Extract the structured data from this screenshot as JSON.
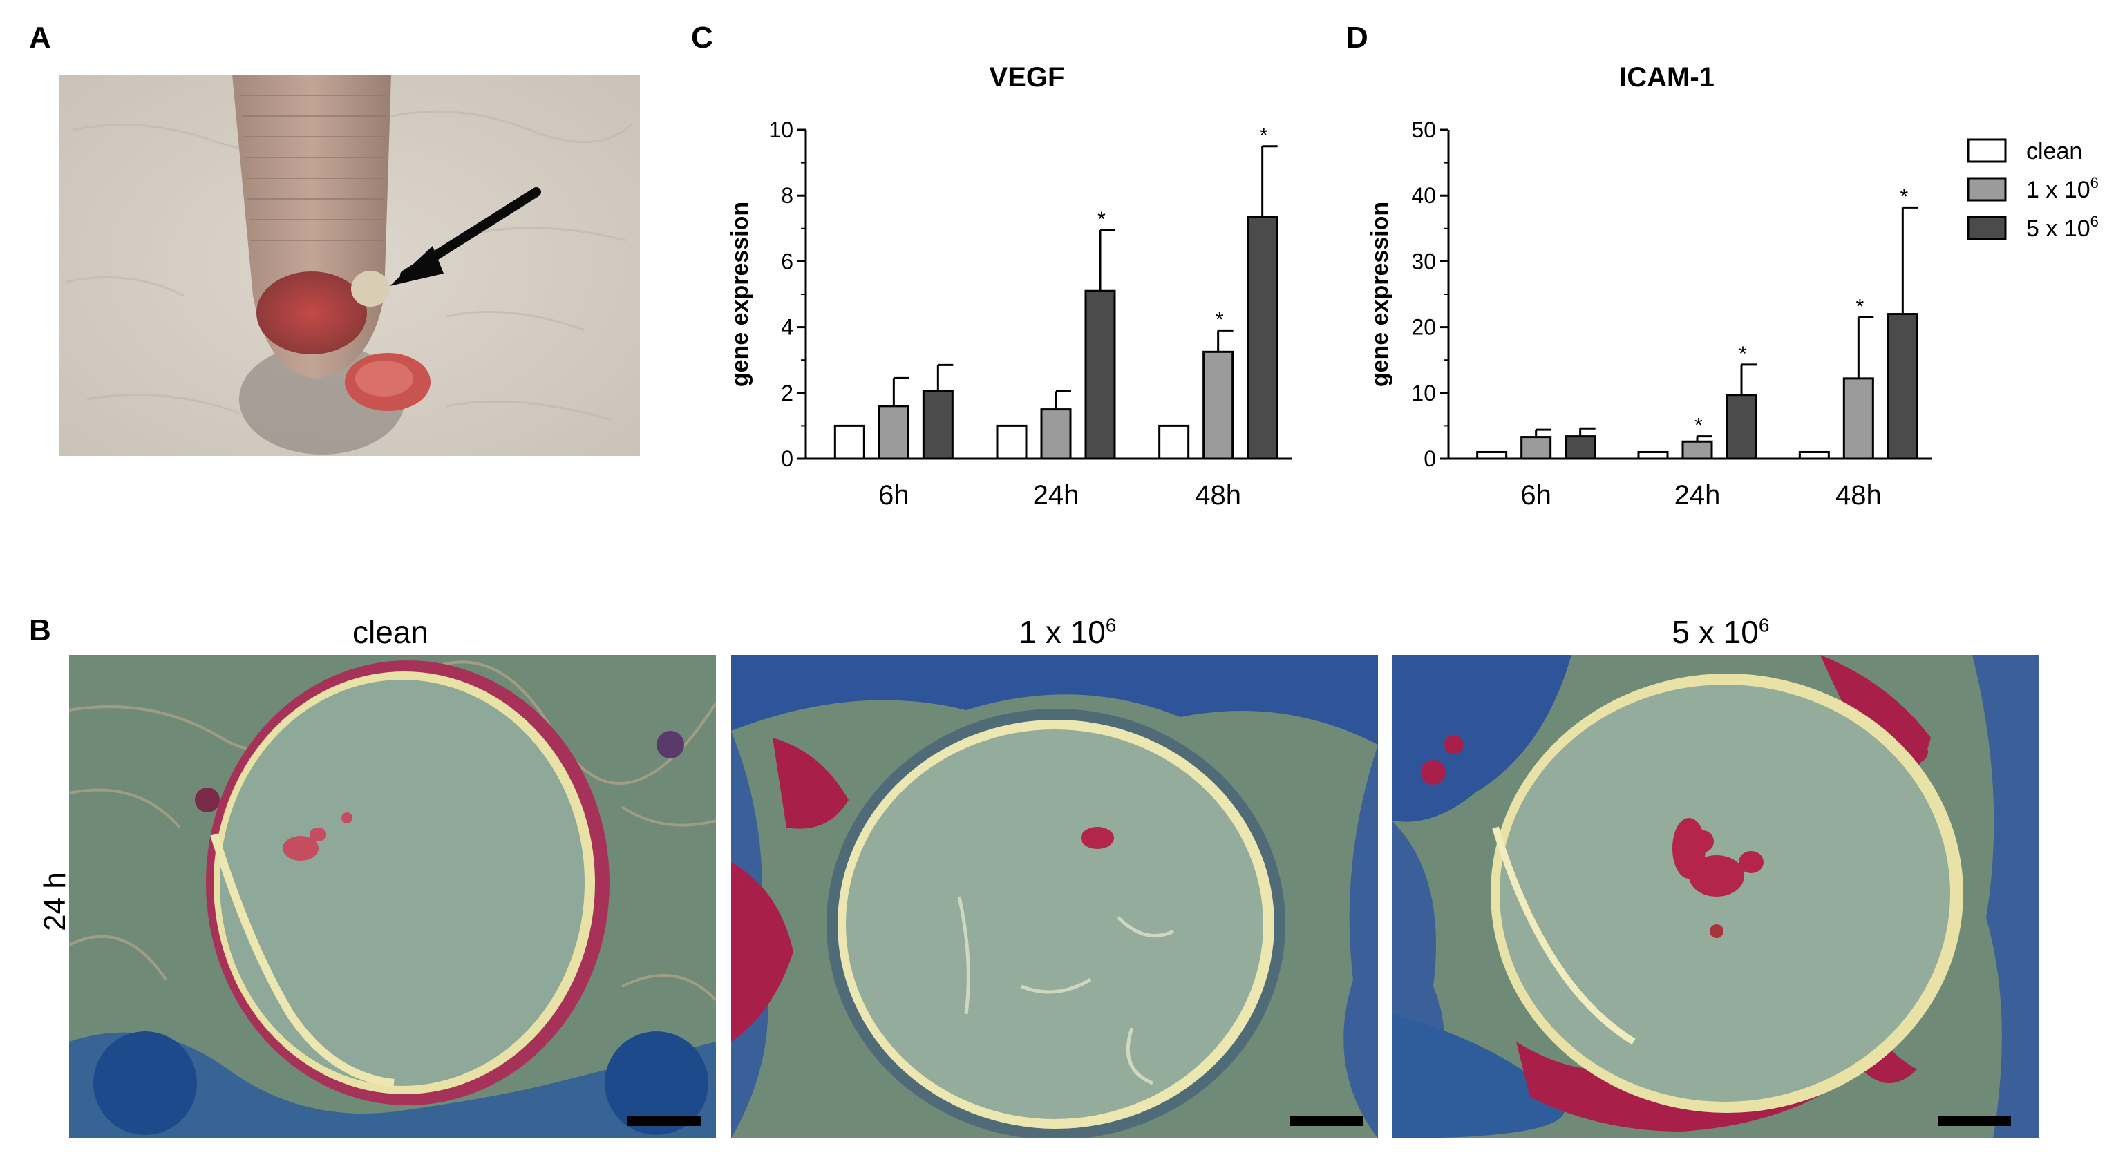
{
  "panels": {
    "A": "A",
    "B": "B",
    "C": "C",
    "D": "D"
  },
  "panel_b": {
    "row_label": "24 h",
    "titles": [
      {
        "base": "clean",
        "sup": ""
      },
      {
        "base": "1 x 10",
        "sup": "6"
      },
      {
        "base": "5 x 10",
        "sup": "6"
      }
    ]
  },
  "legend": [
    {
      "base": "clean",
      "sup": "",
      "color": "#ffffff"
    },
    {
      "base": "1 x 10",
      "sup": "6",
      "color": "#9b9b9b"
    },
    {
      "base": "5 x 10",
      "sup": "6",
      "color": "#4b4b4b"
    }
  ],
  "chart_data": [
    {
      "type": "bar",
      "title": "VEGF",
      "ylabel": "gene expression",
      "ylim": [
        0,
        10
      ],
      "yticks": [
        0,
        2,
        4,
        6,
        8,
        10
      ],
      "categories": [
        "6h",
        "24h",
        "48h"
      ],
      "series": [
        {
          "name": "clean",
          "values": [
            1,
            1,
            1
          ],
          "errors": [
            0,
            0,
            0
          ],
          "sig": [
            false,
            false,
            false
          ]
        },
        {
          "name": "1 x 10^6",
          "values": [
            1.6,
            1.5,
            3.25
          ],
          "errors": [
            0.85,
            0.55,
            0.65
          ],
          "sig": [
            false,
            false,
            true
          ]
        },
        {
          "name": "5 x 10^6",
          "values": [
            2.05,
            5.1,
            7.35
          ],
          "errors": [
            0.8,
            1.85,
            2.15
          ],
          "sig": [
            false,
            true,
            true
          ]
        }
      ],
      "sig_marker": "*"
    },
    {
      "type": "bar",
      "title": "ICAM-1",
      "ylabel": "gene expression",
      "ylim": [
        0,
        50
      ],
      "yticks": [
        0,
        10,
        20,
        30,
        40,
        50
      ],
      "categories": [
        "6h",
        "24h",
        "48h"
      ],
      "series": [
        {
          "name": "clean",
          "values": [
            1,
            1,
            1
          ],
          "errors": [
            0,
            0,
            0
          ],
          "sig": [
            false,
            false,
            false
          ]
        },
        {
          "name": "1 x 10^6",
          "values": [
            3.3,
            2.6,
            12.2
          ],
          "errors": [
            1.1,
            0.8,
            9.3
          ],
          "sig": [
            false,
            true,
            true
          ]
        },
        {
          "name": "5 x 10^6",
          "values": [
            3.4,
            9.7,
            22.0
          ],
          "errors": [
            1.2,
            4.6,
            16.2
          ],
          "sig": [
            false,
            true,
            true
          ]
        }
      ],
      "sig_marker": "*"
    }
  ]
}
